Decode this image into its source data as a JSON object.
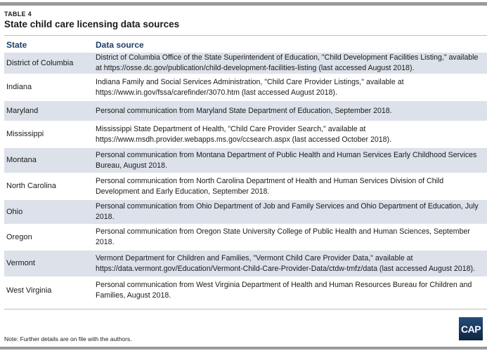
{
  "table_label": "TABLE 4",
  "title": "State child care licensing data sources",
  "headers": {
    "state": "State",
    "source": "Data source"
  },
  "rows": [
    {
      "state": "District of Columbia",
      "source": "District of Columbia Office of the State Superintendent of Education, \"Child Development Facilities Listing,\" available at https://osse.dc.gov/publication/child-development-facilities-listing (last accessed August 2018)."
    },
    {
      "state": "Indiana",
      "source": "Indiana Family and Social Services Administration, \"Child Care Provider Listings,\" available at https://www.in.gov/fssa/carefinder/3070.htm (last accessed August 2018)."
    },
    {
      "state": "Maryland",
      "source": "Personal communication from Maryland State Department of Education, September 2018."
    },
    {
      "state": "Mississippi",
      "source": "Mississippi State Department of Health, \"Child Care Provider Search,\" available at https://www.msdh.provider.webapps.ms.gov/ccsearch.aspx (last accessed October 2018)."
    },
    {
      "state": "Montana",
      "source": "Personal communication from Montana Department of Public Health and Human Services Early Childhood Services Bureau, August 2018."
    },
    {
      "state": "North Carolina",
      "source": "Personal communication from North Carolina Department of Health and Human Services Division of Child Development and Early Education, September 2018."
    },
    {
      "state": "Ohio",
      "source": "Personal communication from Ohio Department of Job and Family Services and Ohio Department of Education, July 2018."
    },
    {
      "state": "Oregon",
      "source": "Personal communication from Oregon State University College of Public Health and Human Sciences, September 2018."
    },
    {
      "state": "Vermont",
      "source": "Vermont Department for Children and Families, \"Vermont Child Care Provider Data,\" available at https://data.vermont.gov/Education/Vermont-Child-Care-Provider-Data/ctdw-tmfz/data (last accessed August 2018)."
    },
    {
      "state": "West Virginia",
      "source": "Personal communication from West Virginia Department of Health and Human Resources Bureau for Children and Families, August 2018."
    }
  ],
  "note": "Note: Further details are on file with the authors.",
  "logo": "CAP"
}
